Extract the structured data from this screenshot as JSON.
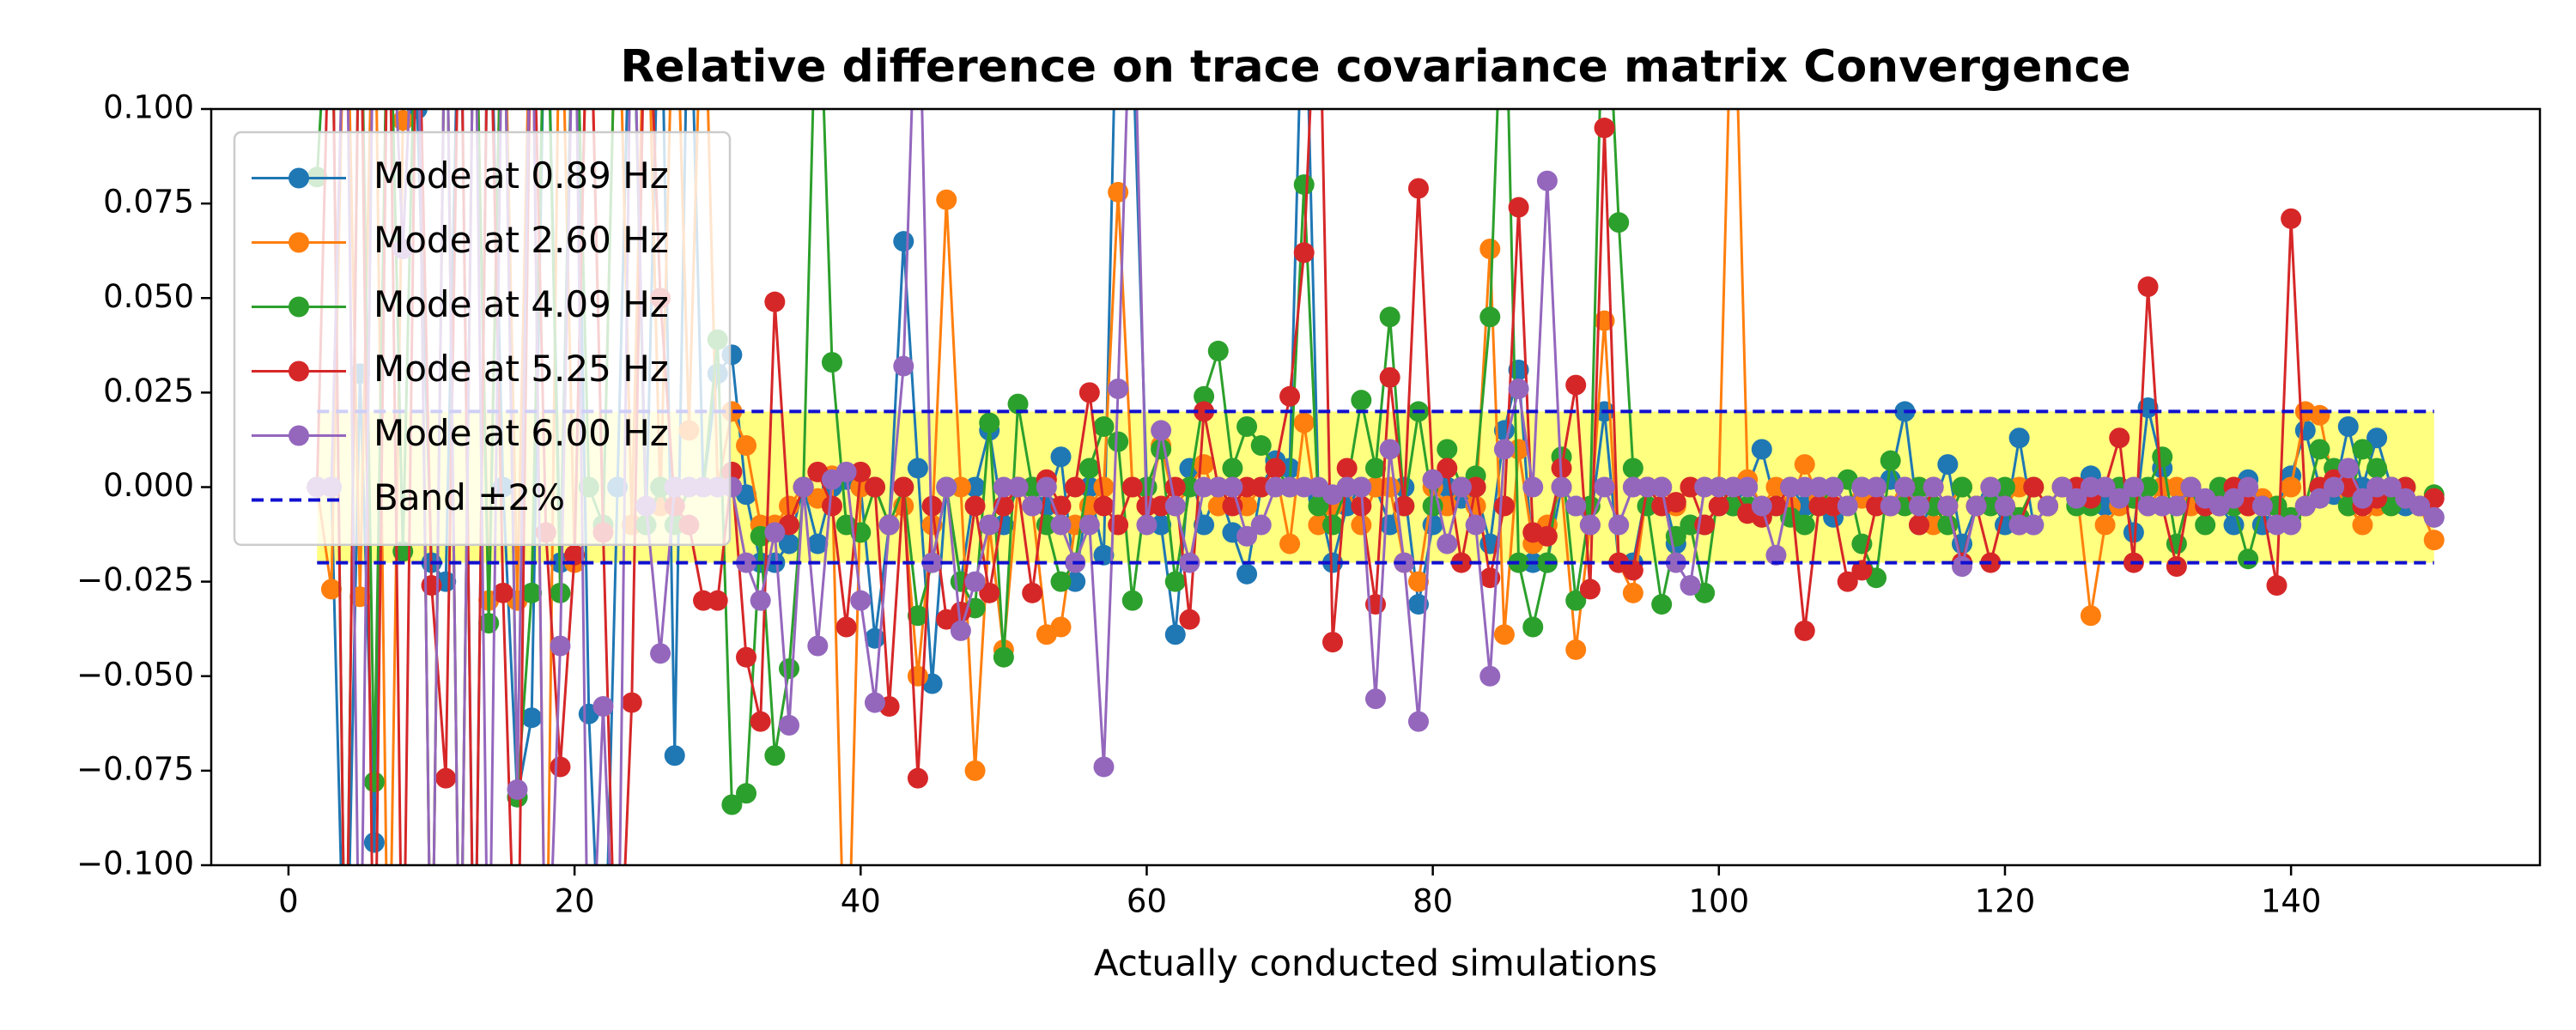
{
  "chart_data": {
    "type": "line",
    "title": "Relative difference on trace covariance matrix Convergence",
    "xlabel": "Actually conducted simulations",
    "legend": "upper left",
    "marker": true,
    "x": [
      2,
      3,
      4,
      5,
      6,
      7,
      8,
      9,
      10,
      11,
      12,
      13,
      14,
      15,
      16,
      17,
      18,
      19,
      20,
      21,
      22,
      23,
      24,
      25,
      26,
      27,
      28,
      29,
      30,
      31,
      32,
      33,
      34,
      35,
      36,
      37,
      38,
      39,
      40,
      41,
      42,
      43,
      44,
      45,
      46,
      47,
      48,
      49,
      50,
      51,
      52,
      53,
      54,
      55,
      56,
      57,
      58,
      59,
      60,
      61,
      62,
      63,
      64,
      65,
      66,
      67,
      68,
      69,
      70,
      71,
      72,
      73,
      74,
      75,
      76,
      77,
      78,
      79,
      80,
      81,
      82,
      83,
      84,
      85,
      86,
      87,
      88,
      89,
      90,
      91,
      92,
      93,
      94,
      95,
      96,
      97,
      98,
      99,
      100,
      101,
      102,
      103,
      104,
      105,
      106,
      107,
      108,
      109,
      110,
      111,
      112,
      113,
      114,
      115,
      116,
      117,
      118,
      119,
      120,
      121,
      122,
      123,
      124,
      125,
      126,
      127,
      128,
      129,
      130,
      131,
      132,
      133,
      134,
      135,
      136,
      137,
      138,
      139,
      140,
      141,
      142,
      143,
      144,
      145,
      146,
      147,
      148,
      149,
      150
    ],
    "series": [
      {
        "name": "Mode at 0.89 Hz",
        "color": "#1f77b4",
        "values": [
          0,
          0,
          -0.15,
          0.03,
          -0.094,
          0.15,
          0.12,
          0.1,
          -0.02,
          -0.025,
          0.15,
          -0.15,
          0.15,
          0,
          -0.082,
          -0.061,
          0.15,
          -0.02,
          0.15,
          -0.06,
          -0.15,
          0,
          0.15,
          -0.01,
          0.15,
          -0.071,
          0.15,
          0,
          0.03,
          0.035,
          -0.002,
          -0.02,
          -0.02,
          -0.015,
          0,
          -0.015,
          0,
          0.002,
          0,
          -0.04,
          -0.01,
          0.065,
          0.005,
          -0.052,
          0,
          -0.025,
          0,
          0.015,
          -0.01,
          0,
          0,
          -0.005,
          0.008,
          -0.025,
          0,
          -0.018,
          0.15,
          0.12,
          0,
          -0.01,
          -0.039,
          0.005,
          -0.01,
          0,
          -0.012,
          -0.023,
          0,
          0.007,
          0.005,
          0.15,
          -0.003,
          -0.02,
          -0.005,
          0,
          0,
          -0.01,
          0,
          -0.031,
          -0.01,
          0,
          -0.003,
          0,
          -0.015,
          0.015,
          0.031,
          -0.02,
          -0.02,
          0,
          -0.005,
          -0.01,
          0.02,
          -0.02,
          -0.02,
          0,
          0,
          -0.015,
          -0.01,
          -0.01,
          -0.005,
          -0.005,
          0,
          0.01,
          -0.005,
          0,
          -0.005,
          -0.005,
          -0.008,
          -0.005,
          0,
          -0.005,
          0.002,
          0.02,
          -0.01,
          -0.005,
          0.006,
          -0.015,
          -0.005,
          -0.003,
          -0.01,
          0.013,
          -0.01,
          -0.005,
          0,
          -0.003,
          0.003,
          -0.005,
          0,
          -0.012,
          0.021,
          0.005,
          -0.005,
          -0.003,
          -0.005,
          -0.005,
          -0.01,
          0.002,
          -0.01,
          -0.005,
          0.003,
          0.015,
          0,
          -0.002,
          0.016,
          0,
          0.013,
          0,
          -0.005,
          -0.005,
          -0.008
        ]
      },
      {
        "name": "Mode at 2.60 Hz",
        "color": "#ff7f0e",
        "values": [
          0,
          -0.027,
          0.15,
          -0.029,
          0.15,
          -0.15,
          0.097,
          0.15,
          -0.15,
          0.15,
          -0.15,
          0.15,
          -0.03,
          0.15,
          -0.03,
          0.15,
          -0.15,
          0.15,
          -0.02,
          0.15,
          -0.01,
          0.15,
          -0.01,
          0.15,
          -0.005,
          0.15,
          0.015,
          0.15,
          0,
          0.02,
          0.011,
          -0.01,
          -0.01,
          -0.005,
          0,
          -0.003,
          0.003,
          -0.15,
          0,
          0,
          -0.01,
          -0.005,
          -0.05,
          -0.01,
          0.076,
          0,
          -0.075,
          -0.01,
          -0.043,
          0,
          -0.005,
          -0.039,
          -0.037,
          -0.01,
          -0.005,
          0,
          0.078,
          0,
          -0.005,
          0.011,
          -0.005,
          0,
          0.006,
          -0.005,
          0,
          -0.005,
          0,
          0.005,
          -0.015,
          0.017,
          -0.01,
          -0.005,
          0,
          -0.01,
          0,
          0,
          -0.02,
          -0.025,
          0,
          -0.005,
          0,
          -0.005,
          0.063,
          -0.039,
          0.01,
          -0.015,
          -0.01,
          0,
          -0.043,
          -0.01,
          0.044,
          -0.02,
          -0.028,
          0,
          0,
          -0.005,
          0,
          0,
          0,
          0.15,
          0.002,
          -0.005,
          0,
          -0.005,
          0.006,
          -0.003,
          -0.005,
          -0.005,
          -0.003,
          0,
          -0.005,
          -0.003,
          0,
          -0.01,
          -0.005,
          0,
          -0.005,
          0,
          -0.005,
          0,
          0,
          -0.005,
          0,
          0,
          -0.034,
          -0.01,
          -0.005,
          0,
          -0.005,
          0,
          0,
          -0.005,
          -0.005,
          -0.003,
          0,
          -0.005,
          -0.003,
          -0.005,
          0,
          0.02,
          0.019,
          0,
          -0.005,
          -0.01,
          -0.005,
          0,
          -0.003,
          -0.005,
          -0.014
        ]
      },
      {
        "name": "Mode at 4.09 Hz",
        "color": "#2ca02c",
        "values": [
          0.082,
          0.15,
          -0.15,
          0.15,
          -0.078,
          0.15,
          -0.017,
          0.15,
          -0.15,
          0.15,
          -0.15,
          0.15,
          -0.036,
          0.15,
          -0.082,
          -0.028,
          0.15,
          -0.028,
          0.15,
          0,
          -0.01,
          0.15,
          0.15,
          -0.01,
          0,
          -0.01,
          0,
          0,
          0.039,
          -0.084,
          -0.081,
          -0.013,
          -0.071,
          -0.048,
          0,
          0.15,
          0.033,
          -0.01,
          -0.012,
          0,
          -0.01,
          0,
          -0.034,
          -0.02,
          0,
          -0.025,
          -0.032,
          0.017,
          -0.045,
          0.022,
          0,
          -0.01,
          -0.025,
          -0.02,
          0.005,
          0.016,
          0.012,
          -0.03,
          0,
          0.01,
          -0.025,
          0,
          0.024,
          0.036,
          0.005,
          0.016,
          0.011,
          0.005,
          0,
          0.08,
          -0.005,
          -0.01,
          0,
          0.023,
          0.005,
          0.045,
          -0.005,
          0.02,
          -0.005,
          0.01,
          0,
          0.003,
          0.045,
          0.15,
          -0.02,
          -0.037,
          -0.02,
          0.008,
          -0.03,
          -0.005,
          0.15,
          0.07,
          0.005,
          -0.005,
          -0.031,
          -0.013,
          -0.01,
          -0.028,
          0,
          -0.005,
          -0.005,
          -0.008,
          -0.005,
          -0.008,
          -0.01,
          -0.005,
          0,
          0.002,
          -0.015,
          -0.024,
          0.007,
          -0.005,
          0,
          -0.005,
          -0.01,
          0,
          -0.005,
          -0.005,
          0,
          -0.008,
          0,
          -0.005,
          0,
          -0.005,
          -0.005,
          0,
          0,
          -0.003,
          0,
          0.008,
          -0.015,
          0,
          -0.01,
          0,
          -0.005,
          -0.019,
          -0.005,
          -0.005,
          -0.008,
          -0.005,
          0.01,
          0.005,
          -0.005,
          0.01,
          0.005,
          -0.005,
          0,
          -0.005,
          -0.002
        ]
      },
      {
        "name": "Mode at 5.25 Hz",
        "color": "#d62728",
        "values": [
          0,
          0.15,
          -0.15,
          0.15,
          -0.15,
          0.15,
          -0.15,
          0.15,
          -0.026,
          -0.077,
          0.15,
          -0.15,
          0.15,
          -0.028,
          -0.15,
          0.15,
          -0.012,
          -0.074,
          -0.018,
          0.15,
          -0.012,
          -0.15,
          -0.057,
          0.15,
          0.05,
          -0.005,
          -0.01,
          -0.03,
          -0.03,
          0.004,
          -0.045,
          -0.062,
          0.049,
          -0.01,
          0,
          0.004,
          -0.005,
          -0.037,
          0.004,
          0,
          -0.058,
          0,
          -0.077,
          -0.005,
          -0.035,
          -0.033,
          -0.005,
          -0.028,
          -0.005,
          0,
          -0.028,
          0.002,
          -0.005,
          0,
          0.025,
          -0.005,
          -0.01,
          0,
          -0.005,
          -0.005,
          0,
          -0.035,
          0.02,
          0,
          -0.005,
          0,
          0,
          0.005,
          0.024,
          0.062,
          0.15,
          -0.041,
          0.005,
          -0.005,
          -0.031,
          0.029,
          -0.005,
          0.079,
          0.002,
          0.005,
          -0.02,
          0,
          -0.024,
          -0.005,
          0.074,
          -0.012,
          -0.013,
          0.005,
          0.027,
          -0.027,
          0.095,
          -0.02,
          -0.022,
          0,
          -0.005,
          -0.004,
          0,
          -0.01,
          -0.005,
          0,
          -0.007,
          -0.008,
          -0.005,
          0,
          -0.038,
          -0.005,
          -0.005,
          -0.025,
          -0.022,
          -0.005,
          -0.005,
          0,
          -0.01,
          0,
          -0.005,
          -0.02,
          -0.005,
          -0.02,
          -0.005,
          -0.01,
          0,
          -0.005,
          0,
          0,
          -0.003,
          0,
          0.013,
          -0.02,
          0.053,
          -0.005,
          -0.021,
          0,
          -0.005,
          -0.005,
          0,
          -0.005,
          -0.005,
          -0.026,
          0.071,
          -0.005,
          0,
          0.002,
          0,
          -0.005,
          -0.003,
          0,
          0,
          -0.005,
          -0.003
        ]
      },
      {
        "name": "Mode at 6.00 Hz",
        "color": "#9467bd",
        "values": [
          0,
          0,
          0.15,
          -0.15,
          0.15,
          0.15,
          0.063,
          0.15,
          -0.15,
          0.15,
          -0.15,
          0.15,
          -0.15,
          0.15,
          -0.08,
          0.15,
          -0.15,
          -0.042,
          0.15,
          -0.15,
          -0.058,
          -0.15,
          0.15,
          -0.005,
          -0.044,
          0,
          0,
          0,
          0,
          0,
          -0.02,
          -0.03,
          -0.012,
          -0.063,
          0,
          -0.042,
          0.002,
          0.004,
          -0.03,
          -0.057,
          -0.01,
          0.032,
          0.15,
          -0.02,
          0,
          -0.038,
          -0.025,
          -0.01,
          0,
          0,
          -0.005,
          0,
          -0.01,
          -0.02,
          -0.01,
          -0.074,
          0.026,
          0.15,
          -0.01,
          0.015,
          -0.005,
          -0.02,
          0,
          0,
          0,
          -0.013,
          -0.01,
          0,
          0,
          0,
          0,
          -0.002,
          0,
          0,
          -0.056,
          0.01,
          -0.02,
          -0.062,
          0.002,
          -0.015,
          0,
          -0.01,
          -0.05,
          0.01,
          0.026,
          0,
          0.081,
          0,
          -0.005,
          -0.01,
          0,
          -0.01,
          0,
          0,
          0,
          -0.02,
          -0.026,
          0,
          0,
          0,
          0,
          -0.005,
          -0.018,
          0,
          0,
          0,
          0,
          -0.005,
          0,
          0,
          -0.005,
          0,
          -0.005,
          0,
          -0.005,
          -0.021,
          -0.005,
          0,
          -0.005,
          -0.01,
          -0.01,
          -0.005,
          0,
          -0.003,
          0,
          0,
          -0.003,
          0,
          -0.005,
          -0.005,
          -0.005,
          0,
          -0.003,
          -0.005,
          -0.003,
          0,
          -0.005,
          -0.01,
          -0.01,
          -0.005,
          -0.003,
          0,
          0.005,
          -0.003,
          0,
          0,
          -0.003,
          -0.005,
          -0.008
        ]
      }
    ],
    "band": {
      "name": "Band ±2%",
      "color": "#1010d0",
      "fill": "#ffff80",
      "low": -0.02,
      "high": 0.02,
      "x": [
        2,
        150
      ]
    },
    "xlim": [
      -5.4,
      157.4
    ],
    "xticks": [
      0,
      20,
      40,
      60,
      80,
      100,
      120,
      140
    ],
    "ylim": [
      -0.1,
      0.1
    ],
    "yticks": [
      {
        "value": -0.1,
        "label": "−0.100"
      },
      {
        "value": -0.075,
        "label": "−0.075"
      },
      {
        "value": -0.05,
        "label": "−0.050"
      },
      {
        "value": -0.025,
        "label": "−0.025"
      },
      {
        "value": 0,
        "label": "0.000"
      },
      {
        "value": 0.025,
        "label": "0.025"
      },
      {
        "value": 0.05,
        "label": "0.050"
      },
      {
        "value": 0.075,
        "label": "0.075"
      },
      {
        "value": 0.1,
        "label": "0.100"
      }
    ]
  }
}
